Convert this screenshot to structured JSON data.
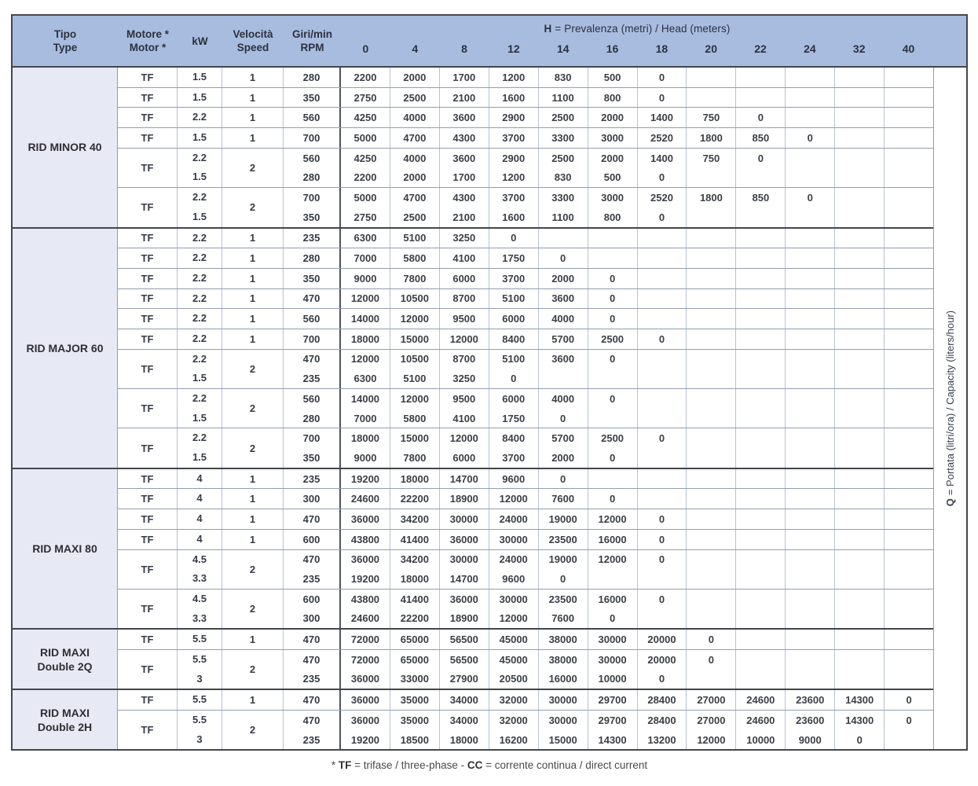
{
  "header": {
    "tipo": [
      "Tipo",
      "Type"
    ],
    "motore": [
      "Motore *",
      "Motor *"
    ],
    "kw": "kW",
    "speed": [
      "Velocità",
      "Speed"
    ],
    "rpm": [
      "Giri/min",
      "RPM"
    ],
    "head_title": [
      "H",
      "= Prevalenza (metri) / Head (meters)"
    ],
    "head_values": [
      "0",
      "4",
      "8",
      "12",
      "14",
      "16",
      "18",
      "20",
      "22",
      "24",
      "32",
      "40"
    ]
  },
  "side_label": [
    "Q ",
    "= Portata (litri/ora) / Capacity (liters/hour)"
  ],
  "footnote": [
    "* ",
    "TF",
    " = trifase / three-phase - ",
    "CC",
    " = corrente continua / direct current"
  ],
  "colors": {
    "header_bg": "#a8bce0",
    "group_bg": "#e7e9f5",
    "grid_light": "#b7c3d3",
    "grid_medium": "#939ead",
    "grid_dark": "#43464c"
  },
  "groups": [
    {
      "name": [
        "RID MINOR 40"
      ],
      "blocks": [
        {
          "motor": "TF",
          "kw": [
            "1.5"
          ],
          "speed": "1",
          "rows": [
            {
              "rpm": "280",
              "values": [
                "2200",
                "2000",
                "1700",
                "1200",
                "830",
                "500",
                "0",
                "",
                "",
                "",
                "",
                ""
              ]
            }
          ]
        },
        {
          "motor": "TF",
          "kw": [
            "1.5"
          ],
          "speed": "1",
          "rows": [
            {
              "rpm": "350",
              "values": [
                "2750",
                "2500",
                "2100",
                "1600",
                "1100",
                "800",
                "0",
                "",
                "",
                "",
                "",
                ""
              ]
            }
          ]
        },
        {
          "motor": "TF",
          "kw": [
            "2.2"
          ],
          "speed": "1",
          "rows": [
            {
              "rpm": "560",
              "values": [
                "4250",
                "4000",
                "3600",
                "2900",
                "2500",
                "2000",
                "1400",
                "750",
                "0",
                "",
                "",
                ""
              ]
            }
          ]
        },
        {
          "motor": "TF",
          "kw": [
            "1.5"
          ],
          "speed": "1",
          "rows": [
            {
              "rpm": "700",
              "values": [
                "5000",
                "4700",
                "4300",
                "3700",
                "3300",
                "3000",
                "2520",
                "1800",
                "850",
                "0",
                "",
                ""
              ]
            }
          ]
        },
        {
          "motor": "TF",
          "kw": [
            "2.2",
            "1.5"
          ],
          "speed": "2",
          "rows": [
            {
              "rpm": "560",
              "values": [
                "4250",
                "4000",
                "3600",
                "2900",
                "2500",
                "2000",
                "1400",
                "750",
                "0",
                "",
                "",
                ""
              ]
            },
            {
              "rpm": "280",
              "values": [
                "2200",
                "2000",
                "1700",
                "1200",
                "830",
                "500",
                "0",
                "",
                "",
                "",
                "",
                ""
              ]
            }
          ]
        },
        {
          "motor": "TF",
          "kw": [
            "2.2",
            "1.5"
          ],
          "speed": "2",
          "rows": [
            {
              "rpm": "700",
              "values": [
                "5000",
                "4700",
                "4300",
                "3700",
                "3300",
                "3000",
                "2520",
                "1800",
                "850",
                "0",
                "",
                ""
              ]
            },
            {
              "rpm": "350",
              "values": [
                "2750",
                "2500",
                "2100",
                "1600",
                "1100",
                "800",
                "0",
                "",
                "",
                "",
                "",
                ""
              ]
            }
          ]
        }
      ]
    },
    {
      "name": [
        "RID MAJOR 60"
      ],
      "blocks": [
        {
          "motor": "TF",
          "kw": [
            "2.2"
          ],
          "speed": "1",
          "rows": [
            {
              "rpm": "235",
              "values": [
                "6300",
                "5100",
                "3250",
                "0",
                "",
                "",
                "",
                "",
                "",
                "",
                "",
                ""
              ]
            }
          ]
        },
        {
          "motor": "TF",
          "kw": [
            "2.2"
          ],
          "speed": "1",
          "rows": [
            {
              "rpm": "280",
              "values": [
                "7000",
                "5800",
                "4100",
                "1750",
                "0",
                "",
                "",
                "",
                "",
                "",
                "",
                ""
              ]
            }
          ]
        },
        {
          "motor": "TF",
          "kw": [
            "2.2"
          ],
          "speed": "1",
          "rows": [
            {
              "rpm": "350",
              "values": [
                "9000",
                "7800",
                "6000",
                "3700",
                "2000",
                "0",
                "",
                "",
                "",
                "",
                "",
                ""
              ]
            }
          ]
        },
        {
          "motor": "TF",
          "kw": [
            "2.2"
          ],
          "speed": "1",
          "rows": [
            {
              "rpm": "470",
              "values": [
                "12000",
                "10500",
                "8700",
                "5100",
                "3600",
                "0",
                "",
                "",
                "",
                "",
                "",
                ""
              ]
            }
          ]
        },
        {
          "motor": "TF",
          "kw": [
            "2.2"
          ],
          "speed": "1",
          "rows": [
            {
              "rpm": "560",
              "values": [
                "14000",
                "12000",
                "9500",
                "6000",
                "4000",
                "0",
                "",
                "",
                "",
                "",
                "",
                ""
              ]
            }
          ]
        },
        {
          "motor": "TF",
          "kw": [
            "2.2"
          ],
          "speed": "1",
          "rows": [
            {
              "rpm": "700",
              "values": [
                "18000",
                "15000",
                "12000",
                "8400",
                "5700",
                "2500",
                "0",
                "",
                "",
                "",
                "",
                ""
              ]
            }
          ]
        },
        {
          "motor": "TF",
          "kw": [
            "2.2",
            "1.5"
          ],
          "speed": "2",
          "rows": [
            {
              "rpm": "470",
              "values": [
                "12000",
                "10500",
                "8700",
                "5100",
                "3600",
                "0",
                "",
                "",
                "",
                "",
                "",
                ""
              ]
            },
            {
              "rpm": "235",
              "values": [
                "6300",
                "5100",
                "3250",
                "0",
                "",
                "",
                "",
                "",
                "",
                "",
                "",
                ""
              ]
            }
          ]
        },
        {
          "motor": "TF",
          "kw": [
            "2.2",
            "1.5"
          ],
          "speed": "2",
          "rows": [
            {
              "rpm": "560",
              "values": [
                "14000",
                "12000",
                "9500",
                "6000",
                "4000",
                "0",
                "",
                "",
                "",
                "",
                "",
                ""
              ]
            },
            {
              "rpm": "280",
              "values": [
                "7000",
                "5800",
                "4100",
                "1750",
                "0",
                "",
                "",
                "",
                "",
                "",
                "",
                ""
              ]
            }
          ]
        },
        {
          "motor": "TF",
          "kw": [
            "2.2",
            "1.5"
          ],
          "speed": "2",
          "rows": [
            {
              "rpm": "700",
              "values": [
                "18000",
                "15000",
                "12000",
                "8400",
                "5700",
                "2500",
                "0",
                "",
                "",
                "",
                "",
                ""
              ]
            },
            {
              "rpm": "350",
              "values": [
                "9000",
                "7800",
                "6000",
                "3700",
                "2000",
                "0",
                "",
                "",
                "",
                "",
                "",
                ""
              ]
            }
          ]
        }
      ]
    },
    {
      "name": [
        "RID MAXI 80"
      ],
      "blocks": [
        {
          "motor": "TF",
          "kw": [
            "4"
          ],
          "speed": "1",
          "rows": [
            {
              "rpm": "235",
              "values": [
                "19200",
                "18000",
                "14700",
                "9600",
                "0",
                "",
                "",
                "",
                "",
                "",
                "",
                ""
              ]
            }
          ]
        },
        {
          "motor": "TF",
          "kw": [
            "4"
          ],
          "speed": "1",
          "rows": [
            {
              "rpm": "300",
              "values": [
                "24600",
                "22200",
                "18900",
                "12000",
                "7600",
                "0",
                "",
                "",
                "",
                "",
                "",
                ""
              ]
            }
          ]
        },
        {
          "motor": "TF",
          "kw": [
            "4"
          ],
          "speed": "1",
          "rows": [
            {
              "rpm": "470",
              "values": [
                "36000",
                "34200",
                "30000",
                "24000",
                "19000",
                "12000",
                "0",
                "",
                "",
                "",
                "",
                ""
              ]
            }
          ]
        },
        {
          "motor": "TF",
          "kw": [
            "4"
          ],
          "speed": "1",
          "rows": [
            {
              "rpm": "600",
              "values": [
                "43800",
                "41400",
                "36000",
                "30000",
                "23500",
                "16000",
                "0",
                "",
                "",
                "",
                "",
                ""
              ]
            }
          ]
        },
        {
          "motor": "TF",
          "kw": [
            "4.5",
            "3.3"
          ],
          "speed": "2",
          "rows": [
            {
              "rpm": "470",
              "values": [
                "36000",
                "34200",
                "30000",
                "24000",
                "19000",
                "12000",
                "0",
                "",
                "",
                "",
                "",
                ""
              ]
            },
            {
              "rpm": "235",
              "values": [
                "19200",
                "18000",
                "14700",
                "9600",
                "0",
                "",
                "",
                "",
                "",
                "",
                "",
                ""
              ]
            }
          ]
        },
        {
          "motor": "TF",
          "kw": [
            "4.5",
            "3.3"
          ],
          "speed": "2",
          "rows": [
            {
              "rpm": "600",
              "values": [
                "43800",
                "41400",
                "36000",
                "30000",
                "23500",
                "16000",
                "0",
                "",
                "",
                "",
                "",
                ""
              ]
            },
            {
              "rpm": "300",
              "values": [
                "24600",
                "22200",
                "18900",
                "12000",
                "7600",
                "0",
                "",
                "",
                "",
                "",
                "",
                ""
              ]
            }
          ]
        }
      ]
    },
    {
      "name": [
        "RID MAXI",
        "Double 2Q"
      ],
      "blocks": [
        {
          "motor": "TF",
          "kw": [
            "5.5"
          ],
          "speed": "1",
          "rows": [
            {
              "rpm": "470",
              "values": [
                "72000",
                "65000",
                "56500",
                "45000",
                "38000",
                "30000",
                "20000",
                "0",
                "",
                "",
                "",
                ""
              ]
            }
          ]
        },
        {
          "motor": "TF",
          "kw": [
            "5.5",
            "3"
          ],
          "speed": "2",
          "rows": [
            {
              "rpm": "470",
              "values": [
                "72000",
                "65000",
                "56500",
                "45000",
                "38000",
                "30000",
                "20000",
                "0",
                "",
                "",
                "",
                ""
              ]
            },
            {
              "rpm": "235",
              "values": [
                "36000",
                "33000",
                "27900",
                "20500",
                "16000",
                "10000",
                "0",
                "",
                "",
                "",
                "",
                ""
              ]
            }
          ]
        }
      ]
    },
    {
      "name": [
        "RID MAXI",
        "Double 2H"
      ],
      "blocks": [
        {
          "motor": "TF",
          "kw": [
            "5.5"
          ],
          "speed": "1",
          "rows": [
            {
              "rpm": "470",
              "values": [
                "36000",
                "35000",
                "34000",
                "32000",
                "30000",
                "29700",
                "28400",
                "27000",
                "24600",
                "23600",
                "14300",
                "0"
              ]
            }
          ]
        },
        {
          "motor": "TF",
          "kw": [
            "5.5",
            "3"
          ],
          "speed": "2",
          "rows": [
            {
              "rpm": "470",
              "values": [
                "36000",
                "35000",
                "34000",
                "32000",
                "30000",
                "29700",
                "28400",
                "27000",
                "24600",
                "23600",
                "14300",
                "0"
              ]
            },
            {
              "rpm": "235",
              "values": [
                "19200",
                "18500",
                "18000",
                "16200",
                "15000",
                "14300",
                "13200",
                "12000",
                "10000",
                "9000",
                "0",
                ""
              ]
            }
          ]
        }
      ]
    }
  ]
}
